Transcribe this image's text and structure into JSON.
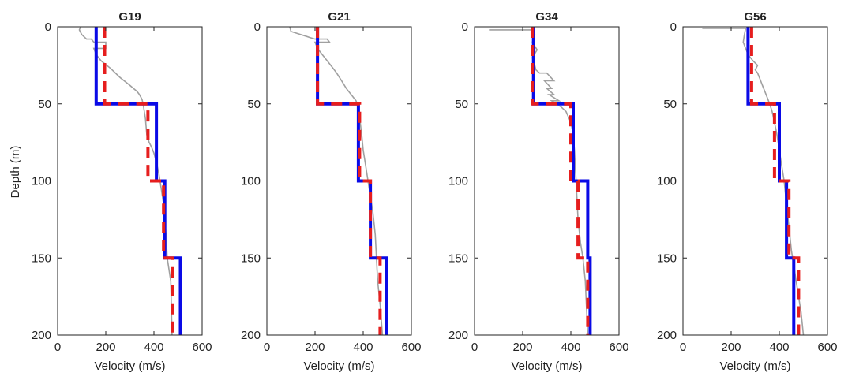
{
  "figure": {
    "ylabel": "Depth (m)"
  },
  "colors": {
    "model_a": "#0a0ae6",
    "model_b": "#e61e1e",
    "measured": "#a0a0a0",
    "axes": "#222222"
  },
  "chart_data": [
    {
      "type": "line",
      "title": "G19",
      "xlabel": "Velocity (m/s)",
      "ylabel": "Depth (m)",
      "xlim": [
        0,
        600
      ],
      "ylim": [
        0,
        200
      ],
      "y_reversed": true,
      "xticks": [
        0,
        200,
        400,
        600
      ],
      "yticks": [
        0,
        50,
        100,
        150,
        200
      ],
      "legend": "none",
      "grid": false,
      "series": [
        {
          "style": "solid-blue",
          "x": [
            160,
            160,
            410,
            410,
            445,
            445,
            510,
            510
          ],
          "y": [
            0,
            50,
            50,
            100,
            100,
            150,
            150,
            200
          ]
        },
        {
          "style": "dashed-red",
          "x": [
            195,
            195,
            375,
            375,
            440,
            440,
            478,
            478
          ],
          "y": [
            0,
            50,
            50,
            100,
            100,
            150,
            150,
            200
          ]
        },
        {
          "style": "thin-gray",
          "x": [
            95,
            90,
            100,
            120,
            140,
            150,
            200,
            200,
            150,
            160,
            180,
            220,
            260,
            300,
            330,
            340,
            350,
            355,
            360,
            365,
            370,
            380,
            390,
            400,
            410,
            420,
            430,
            440,
            445,
            450,
            455,
            470,
            475
          ],
          "y": [
            0,
            2,
            5,
            8,
            8,
            10,
            10,
            14,
            14,
            18,
            22,
            27,
            33,
            38,
            42,
            44,
            47,
            50,
            55,
            60,
            70,
            75,
            78,
            82,
            88,
            95,
            105,
            115,
            125,
            135,
            150,
            165,
            200
          ]
        }
      ]
    },
    {
      "type": "line",
      "title": "G21",
      "xlabel": "Velocity (m/s)",
      "ylabel": "",
      "xlim": [
        0,
        600
      ],
      "ylim": [
        0,
        200
      ],
      "y_reversed": true,
      "xticks": [
        0,
        200,
        400,
        600
      ],
      "yticks": [
        0,
        50,
        100,
        150,
        200
      ],
      "legend": "none",
      "grid": false,
      "series": [
        {
          "style": "solid-blue",
          "x": [
            210,
            210,
            380,
            380,
            430,
            430,
            495,
            495
          ],
          "y": [
            0,
            50,
            50,
            100,
            100,
            150,
            150,
            200
          ]
        },
        {
          "style": "dashed-red",
          "x": [
            210,
            210,
            385,
            385,
            430,
            430,
            470,
            470
          ],
          "y": [
            0,
            50,
            50,
            100,
            100,
            150,
            150,
            200
          ]
        },
        {
          "style": "thin-gray",
          "x": [
            95,
            100,
            140,
            160,
            180,
            200,
            250,
            260,
            200,
            210,
            230,
            250,
            270,
            290,
            310,
            330,
            350,
            370,
            380,
            385,
            390,
            395,
            400,
            410,
            420,
            430,
            440,
            450,
            455,
            460,
            470,
            480
          ],
          "y": [
            0,
            3,
            5,
            6,
            7,
            8,
            8,
            10,
            10,
            14,
            18,
            22,
            26,
            30,
            35,
            40,
            44,
            48,
            52,
            58,
            65,
            72,
            80,
            90,
            100,
            110,
            120,
            135,
            150,
            165,
            180,
            200
          ]
        }
      ]
    },
    {
      "type": "line",
      "title": "G34",
      "xlabel": "Velocity (m/s)",
      "ylabel": "",
      "xlim": [
        0,
        600
      ],
      "ylim": [
        0,
        200
      ],
      "y_reversed": true,
      "xticks": [
        0,
        200,
        400,
        600
      ],
      "yticks": [
        0,
        50,
        100,
        150,
        200
      ],
      "legend": "none",
      "grid": false,
      "series": [
        {
          "style": "solid-blue",
          "x": [
            245,
            245,
            410,
            410,
            470,
            470,
            480,
            480
          ],
          "y": [
            0,
            50,
            50,
            100,
            100,
            150,
            150,
            200
          ]
        },
        {
          "style": "dashed-red",
          "x": [
            240,
            240,
            400,
            400,
            430,
            430,
            470,
            470
          ],
          "y": [
            0,
            50,
            50,
            100,
            100,
            150,
            150,
            200
          ]
        },
        {
          "style": "thin-gray",
          "x": [
            60,
            240,
            250,
            240,
            260,
            240,
            250,
            255,
            270,
            300,
            330,
            290,
            320,
            300,
            330,
            310,
            350,
            320,
            360,
            380,
            400,
            410,
            415,
            420,
            425,
            430,
            440,
            450,
            460,
            470
          ],
          "y": [
            2,
            2,
            5,
            10,
            15,
            20,
            25,
            28,
            30,
            30,
            35,
            35,
            40,
            40,
            44,
            44,
            48,
            48,
            52,
            55,
            62,
            70,
            80,
            95,
            110,
            125,
            140,
            150,
            165,
            200
          ]
        }
      ]
    },
    {
      "type": "line",
      "title": "G56",
      "xlabel": "Velocity (m/s)",
      "ylabel": "",
      "xlim": [
        0,
        600
      ],
      "ylim": [
        0,
        200
      ],
      "y_reversed": true,
      "xticks": [
        0,
        200,
        400,
        600
      ],
      "yticks": [
        0,
        50,
        100,
        150,
        200
      ],
      "legend": "none",
      "grid": false,
      "series": [
        {
          "style": "solid-blue",
          "x": [
            270,
            270,
            400,
            400,
            430,
            430,
            460,
            460
          ],
          "y": [
            0,
            50,
            50,
            100,
            100,
            150,
            150,
            200
          ]
        },
        {
          "style": "dashed-red",
          "x": [
            285,
            285,
            380,
            380,
            440,
            440,
            480,
            480
          ],
          "y": [
            0,
            50,
            50,
            100,
            100,
            150,
            150,
            200
          ]
        },
        {
          "style": "thin-gray",
          "x": [
            80,
            260,
            255,
            250,
            260,
            270,
            290,
            310,
            300,
            310,
            320,
            330,
            340,
            350,
            360,
            370,
            380,
            390,
            400,
            410,
            420,
            430,
            440,
            450,
            460,
            470,
            480,
            490,
            500
          ],
          "y": [
            1,
            1,
            5,
            10,
            14,
            18,
            22,
            25,
            28,
            30,
            34,
            38,
            42,
            46,
            50,
            55,
            62,
            70,
            80,
            90,
            100,
            115,
            130,
            145,
            155,
            165,
            175,
            185,
            200
          ]
        }
      ]
    }
  ]
}
